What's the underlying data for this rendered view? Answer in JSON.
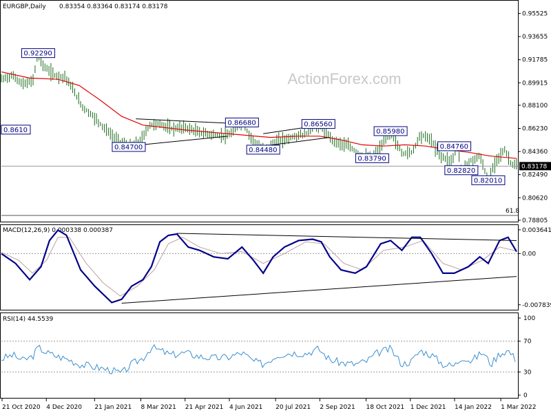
{
  "header": {
    "symbol": "EURGBP,Daily",
    "ohlc": "0.83354 0.83364 0.83174 0.83178"
  },
  "watermark": "ActionForex.com",
  "colors": {
    "price": "#1a6b1a",
    "ema": "#e00000",
    "macd": "#00008b",
    "signal": "#bfa0a0",
    "rsi": "#3a8fd0",
    "trend": "#000000",
    "label_border": "#000080",
    "current_price_bg": "#000000"
  },
  "chart_data": [
    {
      "type": "line",
      "title": "EURGBP,Daily",
      "y_ticks": [
        "0.95525",
        "0.93655",
        "0.91785",
        "0.89915",
        "0.88100",
        "0.86230",
        "0.84360",
        "0.82490",
        "0.80620",
        "0.78805"
      ],
      "ylim": [
        0.788,
        0.965
      ],
      "current_price": "0.83178",
      "fib_label": "61.8",
      "annotations": [
        {
          "text": "0.92290",
          "value": 0.9229,
          "day": 26
        },
        {
          "text": "0.8610",
          "value": 0.861,
          "day": 0
        },
        {
          "text": "0.84700",
          "value": 0.847,
          "day": 90
        },
        {
          "text": "0.86680",
          "value": 0.8668,
          "day": 170
        },
        {
          "text": "0.84480",
          "value": 0.8448,
          "day": 185
        },
        {
          "text": "0.86560",
          "value": 0.8656,
          "day": 224
        },
        {
          "text": "0.83790",
          "value": 0.8379,
          "day": 262
        },
        {
          "text": "0.85980",
          "value": 0.8598,
          "day": 275
        },
        {
          "text": "0.84760",
          "value": 0.8476,
          "day": 320
        },
        {
          "text": "0.82820",
          "value": 0.8282,
          "day": 325
        },
        {
          "text": "0.82010",
          "value": 0.8201,
          "day": 344
        }
      ],
      "series": [
        {
          "key": "price",
          "close": [
            [
              0,
              0.902
            ],
            [
              8,
              0.905
            ],
            [
              15,
              0.898
            ],
            [
              22,
              0.9
            ],
            [
              26,
              0.9229
            ],
            [
              30,
              0.912
            ],
            [
              38,
              0.905
            ],
            [
              45,
              0.904
            ],
            [
              50,
              0.895
            ],
            [
              57,
              0.88
            ],
            [
              65,
              0.872
            ],
            [
              75,
              0.86
            ],
            [
              82,
              0.852
            ],
            [
              90,
              0.847
            ],
            [
              98,
              0.852
            ],
            [
              105,
              0.865
            ],
            [
              112,
              0.866
            ],
            [
              120,
              0.862
            ],
            [
              130,
              0.863
            ],
            [
              140,
              0.859
            ],
            [
              150,
              0.857
            ],
            [
              160,
              0.856
            ],
            [
              170,
              0.8668
            ],
            [
              178,
              0.852
            ],
            [
              185,
              0.8448
            ],
            [
              195,
              0.852
            ],
            [
              205,
              0.855
            ],
            [
              215,
              0.858
            ],
            [
              224,
              0.8656
            ],
            [
              235,
              0.852
            ],
            [
              245,
              0.848
            ],
            [
              255,
              0.84
            ],
            [
              262,
              0.8379
            ],
            [
              268,
              0.847
            ],
            [
              275,
              0.8598
            ],
            [
              283,
              0.842
            ],
            [
              290,
              0.843
            ],
            [
              296,
              0.857
            ],
            [
              303,
              0.854
            ],
            [
              310,
              0.84
            ],
            [
              318,
              0.836
            ],
            [
              322,
              0.8476
            ],
            [
              325,
              0.8282
            ],
            [
              332,
              0.836
            ],
            [
              338,
              0.84
            ],
            [
              344,
              0.8201
            ],
            [
              350,
              0.838
            ],
            [
              356,
              0.845
            ],
            [
              360,
              0.834
            ],
            [
              364,
              0.8318
            ]
          ]
        },
        {
          "key": "ema",
          "close": [
            [
              0,
              0.908
            ],
            [
              20,
              0.903
            ],
            [
              40,
              0.902
            ],
            [
              55,
              0.897
            ],
            [
              70,
              0.885
            ],
            [
              85,
              0.872
            ],
            [
              100,
              0.865
            ],
            [
              115,
              0.863
            ],
            [
              130,
              0.861
            ],
            [
              150,
              0.859
            ],
            [
              170,
              0.857
            ],
            [
              190,
              0.855
            ],
            [
              210,
              0.856
            ],
            [
              225,
              0.856
            ],
            [
              240,
              0.853
            ],
            [
              255,
              0.849
            ],
            [
              270,
              0.848
            ],
            [
              285,
              0.849
            ],
            [
              300,
              0.848
            ],
            [
              315,
              0.845
            ],
            [
              330,
              0.843
            ],
            [
              345,
              0.84
            ],
            [
              364,
              0.838
            ]
          ]
        }
      ],
      "trendlines": [
        {
          "from": [
            90,
            0.848
          ],
          "to": [
            160,
            0.856
          ]
        },
        {
          "from": [
            95,
            0.87
          ],
          "to": [
            170,
            0.866
          ]
        },
        {
          "from": [
            185,
            0.848
          ],
          "to": [
            232,
            0.855
          ]
        },
        {
          "from": [
            185,
            0.858
          ],
          "to": [
            232,
            0.866
          ]
        }
      ]
    },
    {
      "type": "line",
      "title": "MACD(12,26,9) 0.000338 0.000387",
      "y_ticks": [
        "0.003641",
        "0.00",
        "-0.007839"
      ],
      "ylim": [
        -0.00839,
        0.00405
      ],
      "series": [
        {
          "key": "macd",
          "close": [
            [
              0,
              0.0
            ],
            [
              10,
              -0.0015
            ],
            [
              20,
              -0.004
            ],
            [
              28,
              -0.002
            ],
            [
              34,
              0.002
            ],
            [
              40,
              0.0036
            ],
            [
              46,
              0.0028
            ],
            [
              56,
              -0.0025
            ],
            [
              66,
              -0.005
            ],
            [
              78,
              -0.0075
            ],
            [
              85,
              -0.007
            ],
            [
              92,
              -0.005
            ],
            [
              100,
              -0.004
            ],
            [
              106,
              -0.002
            ],
            [
              112,
              0.0018
            ],
            [
              118,
              0.0028
            ],
            [
              124,
              0.003
            ],
            [
              132,
              0.001
            ],
            [
              140,
              0.0005
            ],
            [
              150,
              -0.0005
            ],
            [
              160,
              -0.0008
            ],
            [
              170,
              0.001
            ],
            [
              178,
              -0.001
            ],
            [
              185,
              -0.003
            ],
            [
              192,
              -0.0005
            ],
            [
              200,
              0.001
            ],
            [
              210,
              0.002
            ],
            [
              220,
              0.0022
            ],
            [
              226,
              0.0018
            ],
            [
              232,
              -0.0005
            ],
            [
              240,
              -0.0025
            ],
            [
              250,
              -0.003
            ],
            [
              258,
              -0.002
            ],
            [
              268,
              0.0015
            ],
            [
              275,
              0.002
            ],
            [
              283,
              0.0005
            ],
            [
              290,
              0.0025
            ],
            [
              296,
              0.0025
            ],
            [
              304,
              0.0
            ],
            [
              312,
              -0.003
            ],
            [
              320,
              -0.003
            ],
            [
              330,
              -0.002
            ],
            [
              338,
              -0.0005
            ],
            [
              344,
              -0.0015
            ],
            [
              352,
              0.002
            ],
            [
              358,
              0.0025
            ],
            [
              364,
              0.0003
            ]
          ]
        },
        {
          "key": "signal",
          "close": [
            [
              0,
              0.0002
            ],
            [
              12,
              -0.001
            ],
            [
              22,
              -0.003
            ],
            [
              32,
              -0.001
            ],
            [
              40,
              0.0025
            ],
            [
              48,
              0.0025
            ],
            [
              60,
              -0.0015
            ],
            [
              72,
              -0.0045
            ],
            [
              84,
              -0.0065
            ],
            [
              96,
              -0.005
            ],
            [
              108,
              -0.0025
            ],
            [
              118,
              0.0015
            ],
            [
              128,
              0.0025
            ],
            [
              140,
              0.001
            ],
            [
              155,
              0.0
            ],
            [
              170,
              0.0003
            ],
            [
              185,
              -0.0015
            ],
            [
              200,
              0.0
            ],
            [
              215,
              0.0018
            ],
            [
              228,
              0.0015
            ],
            [
              242,
              -0.0015
            ],
            [
              255,
              -0.0025
            ],
            [
              270,
              0.0005
            ],
            [
              285,
              0.001
            ],
            [
              298,
              0.002
            ],
            [
              312,
              -0.0015
            ],
            [
              325,
              -0.0025
            ],
            [
              340,
              -0.001
            ],
            [
              352,
              0.001
            ],
            [
              364,
              0.0004
            ]
          ]
        }
      ],
      "trendlines": [
        {
          "from": [
            85,
            -0.0076
          ],
          "to": [
            364,
            -0.0035
          ]
        },
        {
          "from": [
            124,
            0.0031
          ],
          "to": [
            364,
            0.002
          ]
        }
      ]
    },
    {
      "type": "line",
      "title": "RSI(14) 44.5539",
      "y_ticks": [
        "100",
        "70",
        "30",
        "0"
      ],
      "ylim": [
        0,
        100
      ],
      "levels": [
        70,
        30
      ],
      "series": [
        {
          "key": "rsi",
          "close": [
            [
              0,
              47
            ],
            [
              8,
              52
            ],
            [
              15,
              45
            ],
            [
              22,
              50
            ],
            [
              26,
              62
            ],
            [
              32,
              55
            ],
            [
              40,
              50
            ],
            [
              48,
              46
            ],
            [
              55,
              40
            ],
            [
              62,
              38
            ],
            [
              70,
              35
            ],
            [
              78,
              32
            ],
            [
              85,
              28
            ],
            [
              92,
              40
            ],
            [
              100,
              48
            ],
            [
              106,
              62
            ],
            [
              112,
              58
            ],
            [
              120,
              52
            ],
            [
              130,
              55
            ],
            [
              140,
              50
            ],
            [
              150,
              48
            ],
            [
              160,
              49
            ],
            [
              170,
              55
            ],
            [
              178,
              44
            ],
            [
              185,
              40
            ],
            [
              195,
              52
            ],
            [
              205,
              55
            ],
            [
              215,
              54
            ],
            [
              224,
              60
            ],
            [
              232,
              46
            ],
            [
              240,
              42
            ],
            [
              250,
              40
            ],
            [
              258,
              44
            ],
            [
              266,
              55
            ],
            [
              275,
              60
            ],
            [
              283,
              40
            ],
            [
              290,
              44
            ],
            [
              296,
              58
            ],
            [
              304,
              52
            ],
            [
              312,
              40
            ],
            [
              320,
              38
            ],
            [
              326,
              50
            ],
            [
              332,
              44
            ],
            [
              340,
              56
            ],
            [
              346,
              40
            ],
            [
              352,
              54
            ],
            [
              358,
              58
            ],
            [
              364,
              45
            ]
          ]
        }
      ]
    }
  ],
  "x_axis_labels": [
    {
      "text": "21 Oct 2020",
      "day": 0
    },
    {
      "text": "4 Dec 2020",
      "day": 44
    },
    {
      "text": "21 Jan 2021",
      "day": 92
    },
    {
      "text": "8 Mar 2021",
      "day": 138
    },
    {
      "text": "21 Apr 2021",
      "day": 182
    },
    {
      "text": "4 Jun 2021",
      "day": 226
    },
    {
      "text": "20 Jul 2021",
      "day": 272
    },
    {
      "text": "2 Sep 2021",
      "day": 316
    },
    {
      "text": "18 Oct 2021",
      "day": 362
    },
    {
      "text": "1 Dec 2021",
      "day": 406
    },
    {
      "text": "14 Jan 2022",
      "day": 450
    },
    {
      "text": "1 Mar 2022",
      "day": 496
    }
  ]
}
